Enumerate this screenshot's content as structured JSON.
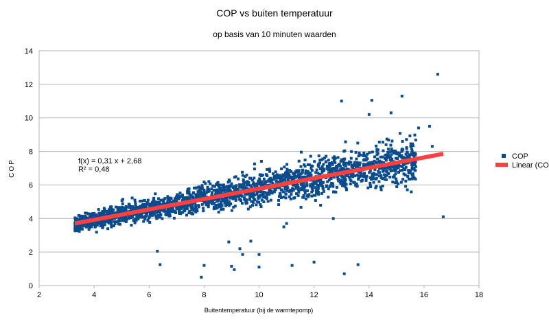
{
  "chart_data": {
    "type": "scatter",
    "title": "COP vs buiten temperatuur",
    "subtitle": "op basis van 10 minuten waarden",
    "xlabel": "Buitentemperatuur (bij de warmtepomp)",
    "ylabel": "COP",
    "xlim": [
      2,
      18
    ],
    "ylim": [
      0,
      14
    ],
    "x_ticks": [
      2,
      4,
      6,
      8,
      10,
      12,
      14,
      16,
      18
    ],
    "y_ticks": [
      0,
      2,
      4,
      6,
      8,
      10,
      12,
      14
    ],
    "grid": {
      "x": false,
      "y": true
    },
    "legend_position": "right",
    "series": [
      {
        "name": "COP",
        "kind": "scatter",
        "marker": "square",
        "color": "#0a4b8c",
        "n_points": 2200,
        "model": "cloud around the trend line, about 3.3 <= x <= 16.7; spread ~0.45 near 4 °C widening to ~1.2 near 15 °C",
        "outliers": [
          {
            "x": 6.3,
            "y": 2.05
          },
          {
            "x": 6.4,
            "y": 1.25
          },
          {
            "x": 7.9,
            "y": 0.5
          },
          {
            "x": 8.0,
            "y": 1.2
          },
          {
            "x": 8.9,
            "y": 2.6
          },
          {
            "x": 9.0,
            "y": 1.15
          },
          {
            "x": 9.1,
            "y": 0.95
          },
          {
            "x": 9.3,
            "y": 2.2
          },
          {
            "x": 9.4,
            "y": 1.85
          },
          {
            "x": 9.7,
            "y": 2.65
          },
          {
            "x": 10.0,
            "y": 1.85
          },
          {
            "x": 10.0,
            "y": 1.1
          },
          {
            "x": 11.2,
            "y": 1.2
          },
          {
            "x": 12.0,
            "y": 1.4
          },
          {
            "x": 13.1,
            "y": 0.7
          },
          {
            "x": 13.6,
            "y": 1.25
          },
          {
            "x": 12.7,
            "y": 4.0
          },
          {
            "x": 11.0,
            "y": 3.7
          },
          {
            "x": 10.9,
            "y": 3.5
          },
          {
            "x": 16.7,
            "y": 4.1
          },
          {
            "x": 16.5,
            "y": 12.6
          },
          {
            "x": 15.2,
            "y": 11.3
          },
          {
            "x": 14.1,
            "y": 11.05
          },
          {
            "x": 13.0,
            "y": 11.0
          },
          {
            "x": 14.8,
            "y": 10.3
          },
          {
            "x": 14.0,
            "y": 10.2
          },
          {
            "x": 16.2,
            "y": 9.5
          },
          {
            "x": 15.8,
            "y": 9.4
          },
          {
            "x": 16.3,
            "y": 8.3
          }
        ]
      },
      {
        "name": "Linear (COP)",
        "kind": "trendline",
        "color": "#ff4040",
        "slope": 0.31,
        "intercept": 2.68,
        "x_range": [
          3.3,
          16.7
        ]
      }
    ],
    "annotation": {
      "equation": "f(x) = 0,31 x + 2,68",
      "r_squared": "R² = 0,48"
    }
  }
}
